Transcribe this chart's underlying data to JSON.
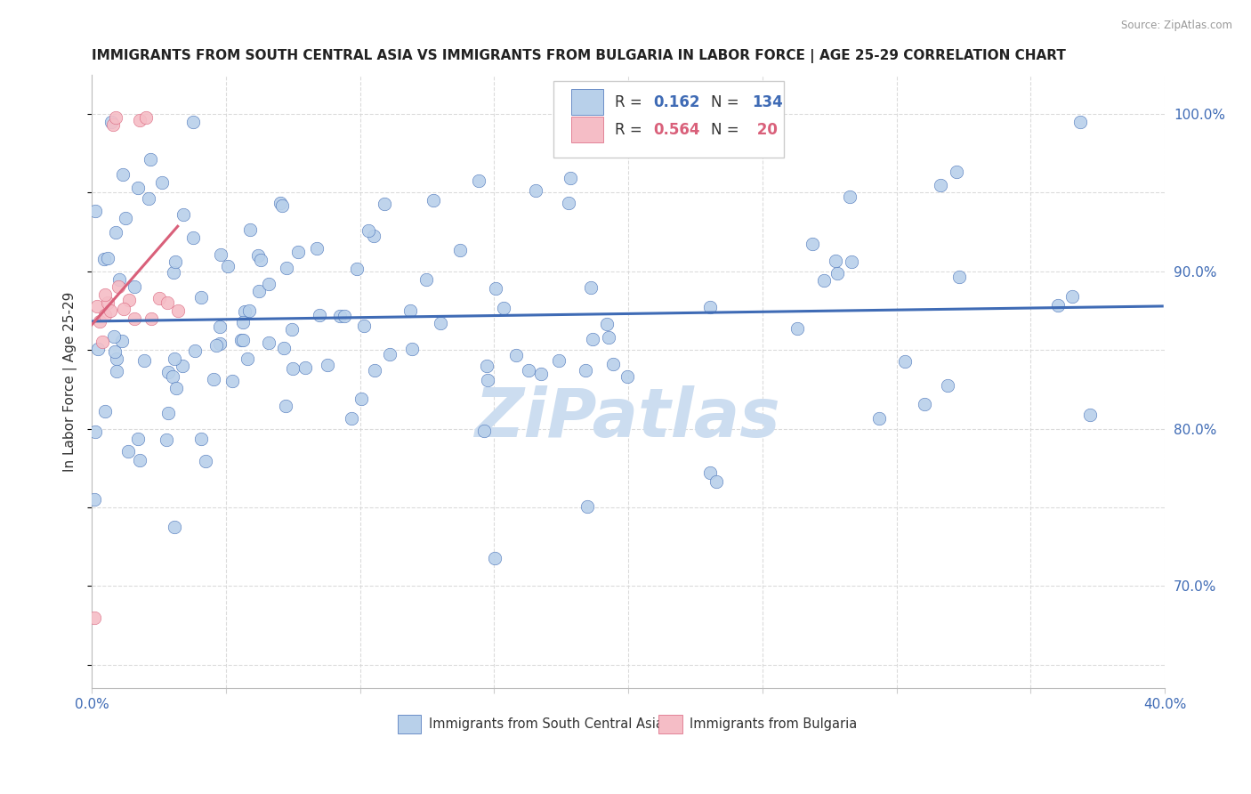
{
  "title": "IMMIGRANTS FROM SOUTH CENTRAL ASIA VS IMMIGRANTS FROM BULGARIA IN LABOR FORCE | AGE 25-29 CORRELATION CHART",
  "source": "Source: ZipAtlas.com",
  "ylabel": "In Labor Force | Age 25-29",
  "xlim": [
    0.0,
    0.4
  ],
  "ylim": [
    0.635,
    1.025
  ],
  "xtick_positions": [
    0.0,
    0.05,
    0.1,
    0.15,
    0.2,
    0.25,
    0.3,
    0.35,
    0.4
  ],
  "xticklabels": [
    "0.0%",
    "",
    "",
    "",
    "",
    "",
    "",
    "",
    "40.0%"
  ],
  "yticks_right": [
    0.7,
    0.8,
    0.9,
    1.0
  ],
  "yticklabels_right": [
    "70.0%",
    "80.0%",
    "90.0%",
    "100.0%"
  ],
  "blue_R": 0.162,
  "blue_N": 134,
  "pink_R": 0.564,
  "pink_N": 20,
  "blue_color": "#b8d0ea",
  "blue_line_color": "#3F6BB5",
  "pink_color": "#f5bdc6",
  "pink_line_color": "#d9607a",
  "watermark": "ZiPatlas",
  "watermark_color": "#ccddf0",
  "legend_blue_label": "Immigrants from South Central Asia",
  "legend_pink_label": "Immigrants from Bulgaria",
  "background_color": "#ffffff",
  "grid_color": "#d8d8d8"
}
